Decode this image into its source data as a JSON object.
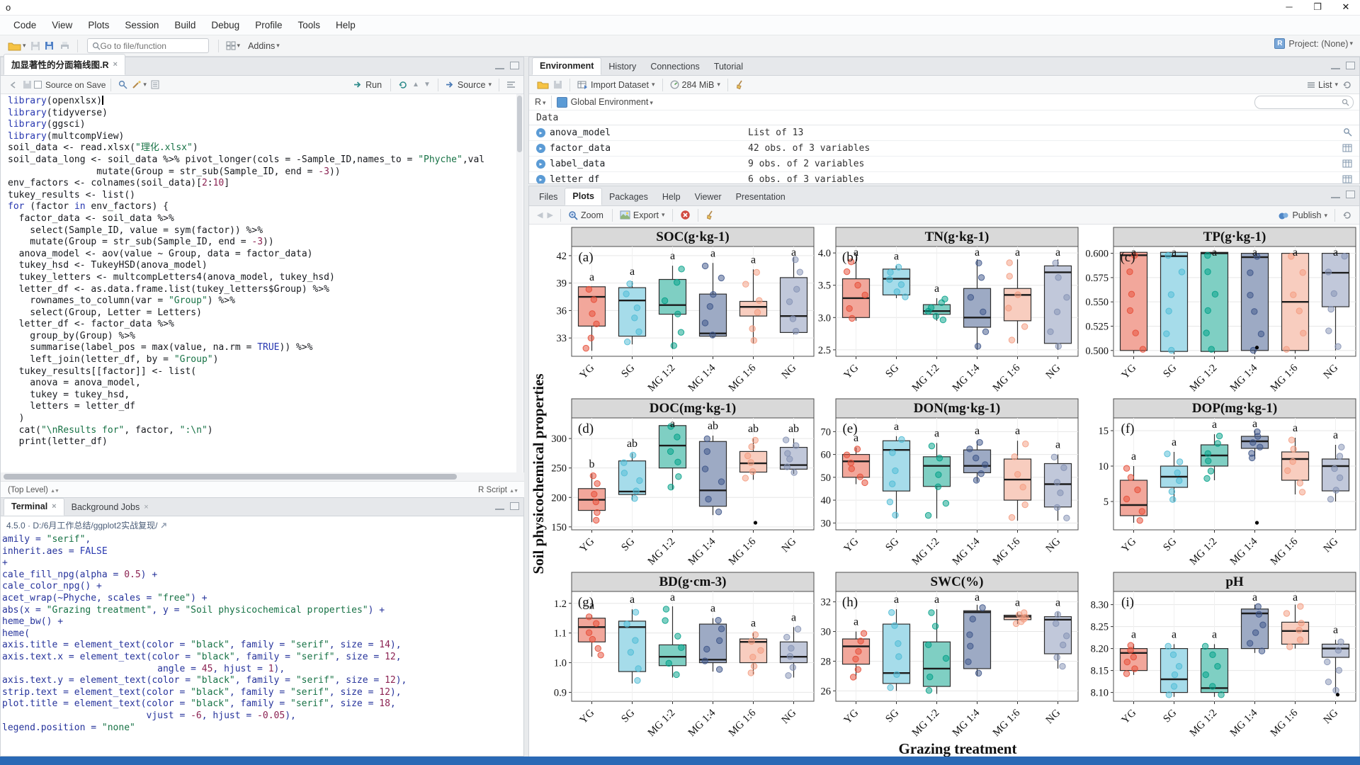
{
  "window": {
    "title": "o",
    "controls": [
      "minimize",
      "maximize",
      "close"
    ]
  },
  "menu": [
    "Code",
    "View",
    "Plots",
    "Session",
    "Build",
    "Debug",
    "Profile",
    "Tools",
    "Help"
  ],
  "main_toolbar": {
    "goto_placeholder": "Go to file/function",
    "addins_label": "Addins",
    "project_label": "Project: (None)"
  },
  "editor": {
    "tab_title": "加显著性的分面箱线图.R",
    "toolbar": {
      "source_on_save": "Source on Save",
      "run_label": "Run",
      "source_label": "Source"
    },
    "status_left": "(Top Level)",
    "status_right": "R Script",
    "code_lines": [
      "library(openxlsx)",
      "library(tidyverse)",
      "library(ggsci)",
      "library(multcompView)",
      "",
      "soil_data <- read.xlsx(\"理化.xlsx\")",
      "soil_data_long <- soil_data %>% pivot_longer(cols = -Sample_ID,names_to = \"Phyche\",val",
      "                mutate(Group = str_sub(Sample_ID, end = -3))",
      "",
      "env_factors <- colnames(soil_data)[2:10]",
      "tukey_results <- list()",
      "for (factor in env_factors) {",
      "  factor_data <- soil_data %>%",
      "    select(Sample_ID, value = sym(factor)) %>%",
      "    mutate(Group = str_sub(Sample_ID, end = -3))",
      "  anova_model <- aov(value ~ Group, data = factor_data)",
      "  tukey_hsd <- TukeyHSD(anova_model)",
      "  tukey_letters <- multcompLetters4(anova_model, tukey_hsd)",
      "  letter_df <- as.data.frame.list(tukey_letters$Group) %>%",
      "    rownames_to_column(var = \"Group\") %>%",
      "    select(Group, Letter = Letters)",
      "  letter_df <- factor_data %>%",
      "    group_by(Group) %>%",
      "    summarise(label_pos = max(value, na.rm = TRUE)) %>%",
      "    left_join(letter_df, by = \"Group\")",
      "  tukey_results[[factor]] <- list(",
      "    anova = anova_model,",
      "    tukey = tukey_hsd,",
      "    letters = letter_df",
      "  )",
      "  cat(\"\\nResults for\", factor, \":\\n\")",
      "  print(letter_df)"
    ]
  },
  "console": {
    "tabs": [
      "Terminal",
      "Background Jobs"
    ],
    "header": "4.5.0 · D:/6月工作总结/ggplot2实战复现/",
    "lines": [
      "amily = \"serif\",",
      "inherit.aes = FALSE",
      "+",
      "cale_fill_npg(alpha = 0.5) +",
      "cale_color_npg() +",
      "acet_wrap(~Phyche, scales = \"free\") +",
      "abs(x = \"Grazing treatment\", y = \"Soil physicochemical properties\") +",
      "heme_bw() +",
      "heme(",
      "axis.title = element_text(color = \"black\", family = \"serif\", size = 14),",
      "axis.text.x = element_text(color = \"black\", family = \"serif\", size = 12,",
      "                            angle = 45, hjust = 1),",
      "axis.text.y = element_text(color = \"black\", family = \"serif\", size = 12),",
      "strip.text = element_text(color = \"black\", family = \"serif\", size = 12),",
      "plot.title = element_text(color = \"black\", family = \"serif\", size = 18,",
      "                          vjust = -6, hjust = -0.05),",
      "legend.position = \"none\""
    ]
  },
  "environment": {
    "tabs": [
      "Environment",
      "History",
      "Connections",
      "Tutorial"
    ],
    "toolbar": {
      "import_label": "Import Dataset",
      "memory_label": "284 MiB",
      "list_label": "List"
    },
    "scope": {
      "lang": "R",
      "env_label": "Global Environment"
    },
    "section_label": "Data",
    "objects": [
      {
        "name": "anova_model",
        "value": "List of 13",
        "row_icon": "magnifier"
      },
      {
        "name": "factor_data",
        "value": "42 obs. of 3 variables",
        "row_icon": "grid"
      },
      {
        "name": "label_data",
        "value": "9 obs. of 2 variables",
        "row_icon": "grid"
      },
      {
        "name": "letter_df",
        "value": "6 obs. of 3 variables",
        "row_icon": "grid"
      }
    ]
  },
  "plots_pane": {
    "tabs": [
      "Files",
      "Plots",
      "Packages",
      "Help",
      "Viewer",
      "Presentation"
    ],
    "toolbar": {
      "zoom_label": "Zoom",
      "export_label": "Export",
      "publish_label": "Publish"
    }
  },
  "chart_data": {
    "type": "boxplot-facets",
    "facets_layout": [
      3,
      3
    ],
    "categories": [
      "YG",
      "SG",
      "MG 1:2",
      "MG 1:4",
      "MG 1:6",
      "NG"
    ],
    "xlabel": "Grazing treatment",
    "ylabel": "Soil physicochemical properties",
    "group_fill": [
      "#f2a79b",
      "#a6dcea",
      "#7fcfc3",
      "#9daac4",
      "#f8cdbf",
      "#c1c8da"
    ],
    "group_stroke": [
      "#e64b35",
      "#4dbbd5",
      "#00a087",
      "#3c5488",
      "#f39b7f",
      "#8491b4"
    ],
    "facets": [
      {
        "tag": "(a)",
        "title": "SOC(g·kg-1)",
        "ylim": [
          31.0,
          43.0
        ],
        "yticks": [
          33,
          36,
          39,
          42
        ],
        "dec": 0,
        "letters": [
          "a",
          "a",
          "a",
          "a",
          "a",
          "a"
        ],
        "boxes": [
          [
            31.6,
            34.3,
            37.5,
            38.6,
            38.6
          ],
          [
            32.3,
            33.2,
            37.1,
            38.5,
            39.2
          ],
          [
            31.8,
            35.6,
            36.6,
            39.4,
            40.9
          ],
          [
            33.0,
            33.2,
            33.5,
            37.8,
            41.2
          ],
          [
            32.4,
            35.4,
            36.4,
            37.0,
            40.5
          ],
          [
            33.4,
            33.6,
            35.4,
            39.6,
            41.9
          ]
        ],
        "outliers": [
          [],
          [],
          [],
          [],
          [],
          []
        ]
      },
      {
        "tag": "(b)",
        "title": "TN(g·kg-1)",
        "ylim": [
          2.4,
          4.1
        ],
        "yticks": [
          2.5,
          3.0,
          3.5,
          4.0
        ],
        "dec": 1,
        "letters": [
          "a",
          "a",
          "a",
          "a",
          "a",
          "a"
        ],
        "boxes": [
          [
            2.95,
            3.0,
            3.3,
            3.6,
            3.9
          ],
          [
            3.3,
            3.35,
            3.6,
            3.75,
            3.8
          ],
          [
            2.95,
            3.05,
            3.1,
            3.2,
            3.3
          ],
          [
            2.5,
            2.85,
            3.0,
            3.45,
            3.9
          ],
          [
            2.6,
            2.95,
            3.35,
            3.45,
            3.9
          ],
          [
            2.5,
            2.6,
            3.7,
            3.8,
            3.9
          ]
        ],
        "outliers": [
          [],
          [],
          [],
          [],
          [],
          []
        ]
      },
      {
        "tag": "(c)",
        "title": "TP(g·kg-1)",
        "ylim": [
          0.494,
          0.607
        ],
        "yticks": [
          0.5,
          0.525,
          0.55,
          0.575,
          0.6
        ],
        "dec": 3,
        "letters": [
          "a",
          "a",
          "a",
          "a",
          "a",
          "a"
        ],
        "boxes": [
          [
            0.497,
            0.5,
            0.598,
            0.601,
            0.602
          ],
          [
            0.496,
            0.499,
            0.597,
            0.601,
            0.602
          ],
          [
            0.497,
            0.499,
            0.6,
            0.601,
            0.602
          ],
          [
            0.496,
            0.5,
            0.596,
            0.6,
            0.601
          ],
          [
            0.497,
            0.5,
            0.55,
            0.6,
            0.601
          ],
          [
            0.5,
            0.545,
            0.58,
            0.6,
            0.601
          ]
        ],
        "outliers": [
          [],
          [],
          [],
          [
            0.503
          ],
          [],
          []
        ]
      },
      {
        "tag": "(d)",
        "title": "DOC(mg·kg-1)",
        "ylim": [
          145,
          335
        ],
        "yticks": [
          150,
          200,
          250,
          300
        ],
        "dec": 0,
        "letters": [
          "b",
          "ab",
          "a",
          "ab",
          "ab",
          "ab"
        ],
        "boxes": [
          [
            158,
            178,
            196,
            215,
            240
          ],
          [
            195,
            205,
            210,
            262,
            275
          ],
          [
            213,
            250,
            288,
            322,
            325
          ],
          [
            170,
            185,
            212,
            295,
            305
          ],
          [
            230,
            243,
            258,
            278,
            300
          ],
          [
            240,
            248,
            255,
            285,
            300
          ]
        ],
        "outliers": [
          [],
          [],
          [],
          [],
          [
            157
          ],
          []
        ]
      },
      {
        "tag": "(e)",
        "title": "DON(mg·kg-1)",
        "ylim": [
          27,
          76
        ],
        "yticks": [
          30,
          40,
          50,
          60,
          70
        ],
        "dec": 0,
        "letters": [
          "a",
          "a",
          "a",
          "a",
          "a",
          "a"
        ],
        "boxes": [
          [
            47,
            50,
            57,
            60,
            63
          ],
          [
            32,
            44,
            62,
            66,
            68
          ],
          [
            32,
            46,
            55,
            59,
            65
          ],
          [
            48,
            52,
            55,
            62,
            66
          ],
          [
            31,
            40,
            49,
            58,
            66
          ],
          [
            31,
            37,
            47,
            56,
            60
          ]
        ],
        "outliers": [
          [],
          [],
          [],
          [],
          [],
          []
        ]
      },
      {
        "tag": "(f)",
        "title": "DOP(mg·kg-1)",
        "ylim": [
          1,
          16.8
        ],
        "yticks": [
          5,
          10,
          15
        ],
        "dec": 0,
        "letters": [
          "a",
          "a",
          "a",
          "a",
          "a",
          "a"
        ],
        "boxes": [
          [
            2,
            3,
            4.5,
            8,
            10
          ],
          [
            5,
            7,
            8.5,
            10,
            12
          ],
          [
            8,
            10,
            11.5,
            13,
            14.5
          ],
          [
            11,
            12.5,
            13.5,
            14.2,
            15
          ],
          [
            6,
            8,
            11,
            12,
            14
          ],
          [
            5,
            6.5,
            10,
            11,
            13
          ]
        ],
        "outliers": [
          [],
          [],
          [],
          [
            2
          ],
          [],
          []
        ]
      },
      {
        "tag": "(g)",
        "title": "BD(g·cm-3)",
        "ylim": [
          0.87,
          1.24
        ],
        "yticks": [
          0.9,
          1.0,
          1.1,
          1.2
        ],
        "dec": 1,
        "letters": [
          "a",
          "a",
          "a",
          "a",
          "a",
          "a"
        ],
        "boxes": [
          [
            1.02,
            1.07,
            1.12,
            1.15,
            1.16
          ],
          [
            0.93,
            0.97,
            1.12,
            1.14,
            1.18
          ],
          [
            0.95,
            0.99,
            1.02,
            1.06,
            1.19
          ],
          [
            0.97,
            1.0,
            1.01,
            1.13,
            1.15
          ],
          [
            0.96,
            1.0,
            1.07,
            1.08,
            1.1
          ],
          [
            0.95,
            1.0,
            1.02,
            1.07,
            1.12
          ]
        ],
        "outliers": [
          [],
          [],
          [],
          [],
          [],
          []
        ]
      },
      {
        "tag": "(h)",
        "title": "SWC(%)",
        "ylim": [
          25.3,
          32.7
        ],
        "yticks": [
          26,
          28,
          30,
          32
        ],
        "dec": 0,
        "letters": [
          "a",
          "a",
          "a",
          "a",
          "a",
          "a"
        ],
        "boxes": [
          [
            26.8,
            27.8,
            29.0,
            29.5,
            30.0
          ],
          [
            26.0,
            26.5,
            27.2,
            30.5,
            31.5
          ],
          [
            25.8,
            26.3,
            27.5,
            29.3,
            31.5
          ],
          [
            27.0,
            27.5,
            31.3,
            31.4,
            31.8
          ],
          [
            30.5,
            30.8,
            31.0,
            31.1,
            31.3
          ],
          [
            27.5,
            28.5,
            30.8,
            31.0,
            31.3
          ]
        ],
        "outliers": [
          [],
          [],
          [],
          [],
          [],
          []
        ]
      },
      {
        "tag": "(i)",
        "title": "pH",
        "ylim": [
          8.08,
          8.33
        ],
        "yticks": [
          8.1,
          8.15,
          8.2,
          8.25,
          8.3
        ],
        "dec": 2,
        "letters": [
          "a",
          "a",
          "a",
          "a",
          "a",
          "a"
        ],
        "boxes": [
          [
            8.14,
            8.15,
            8.19,
            8.2,
            8.21
          ],
          [
            8.09,
            8.1,
            8.13,
            8.2,
            8.21
          ],
          [
            8.09,
            8.1,
            8.11,
            8.2,
            8.21
          ],
          [
            8.19,
            8.2,
            8.28,
            8.29,
            8.3
          ],
          [
            8.2,
            8.21,
            8.24,
            8.26,
            8.3
          ],
          [
            8.1,
            8.18,
            8.2,
            8.21,
            8.22
          ]
        ],
        "outliers": [
          [],
          [],
          [],
          [],
          [],
          [
            8.095
          ]
        ]
      }
    ]
  }
}
